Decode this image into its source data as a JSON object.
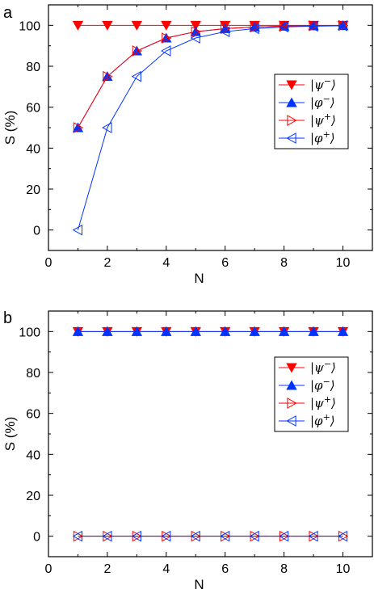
{
  "chart_data": [
    {
      "type": "line",
      "panel_label": "a",
      "xlabel": "N",
      "ylabel": "S (%)",
      "xlim": [
        0,
        11
      ],
      "ylim": [
        -10,
        110
      ],
      "x_ticks": [
        0,
        2,
        4,
        6,
        8,
        10
      ],
      "y_ticks": [
        0,
        20,
        40,
        60,
        80,
        100
      ],
      "legend_position": "right",
      "x": [
        1,
        2,
        3,
        4,
        5,
        6,
        7,
        8,
        9,
        10
      ],
      "series": [
        {
          "legend_parts": [
            "|ψ",
            "−",
            "⟩"
          ],
          "color": "#ff0000",
          "marker": "triangle-down-filled",
          "values": [
            100,
            100,
            100,
            100,
            100,
            100,
            100,
            100,
            100,
            100
          ]
        },
        {
          "legend_parts": [
            "|φ",
            "−",
            "⟩"
          ],
          "color": "#0033ff",
          "marker": "triangle-up-filled",
          "values": [
            50,
            75,
            87.5,
            93.8,
            96.9,
            98.4,
            99.2,
            99.6,
            99.8,
            99.9
          ]
        },
        {
          "legend_parts": [
            "|ψ",
            "+",
            "⟩"
          ],
          "color": "#ff0000",
          "marker": "triangle-right-open",
          "values": [
            50,
            75,
            87.5,
            93.8,
            96.9,
            98.4,
            99.2,
            99.6,
            99.8,
            99.9
          ]
        },
        {
          "legend_parts": [
            "|φ",
            "+",
            "⟩"
          ],
          "color": "#0033ff",
          "marker": "triangle-left-open",
          "values": [
            0,
            50,
            75,
            87.5,
            93.8,
            96.9,
            98.4,
            99.2,
            99.6,
            99.8
          ]
        }
      ]
    },
    {
      "type": "line",
      "panel_label": "b",
      "xlabel": "N",
      "ylabel": "S (%)",
      "xlim": [
        0,
        11
      ],
      "ylim": [
        -10,
        110
      ],
      "x_ticks": [
        0,
        2,
        4,
        6,
        8,
        10
      ],
      "y_ticks": [
        0,
        20,
        40,
        60,
        80,
        100
      ],
      "legend_position": "right",
      "x": [
        1,
        2,
        3,
        4,
        5,
        6,
        7,
        8,
        9,
        10
      ],
      "series": [
        {
          "legend_parts": [
            "|ψ",
            "−",
            "⟩"
          ],
          "color": "#ff0000",
          "marker": "triangle-down-filled",
          "values": [
            100,
            100,
            100,
            100,
            100,
            100,
            100,
            100,
            100,
            100
          ]
        },
        {
          "legend_parts": [
            "|φ",
            "−",
            "⟩"
          ],
          "color": "#0033ff",
          "marker": "triangle-up-filled",
          "values": [
            100,
            100,
            100,
            100,
            100,
            100,
            100,
            100,
            100,
            100
          ]
        },
        {
          "legend_parts": [
            "|ψ",
            "+",
            "⟩"
          ],
          "color": "#ff0000",
          "marker": "triangle-right-open",
          "values": [
            0,
            0,
            0,
            0,
            0,
            0,
            0,
            0,
            0,
            0
          ]
        },
        {
          "legend_parts": [
            "|φ",
            "+",
            "⟩"
          ],
          "color": "#0033ff",
          "marker": "triangle-left-open",
          "values": [
            0,
            0,
            0,
            0,
            0,
            0,
            0,
            0,
            0,
            0
          ]
        }
      ]
    }
  ]
}
